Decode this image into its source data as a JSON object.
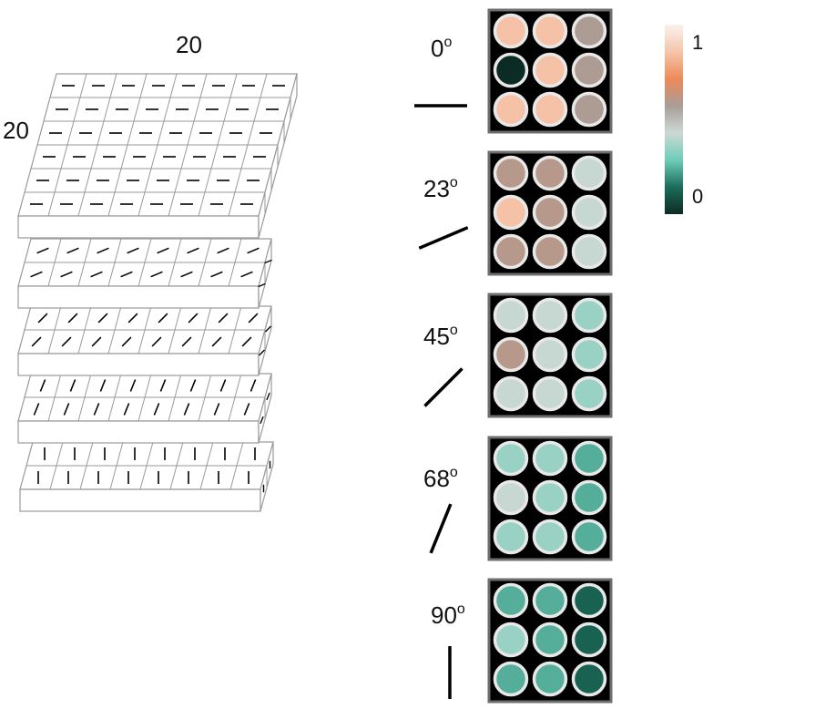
{
  "stack": {
    "width_label": "20",
    "depth_label": "20",
    "layer_angles_deg": [
      0,
      23,
      45,
      68,
      90
    ]
  },
  "panels": [
    {
      "angle_number": "0",
      "degree_mark": "o",
      "orientation_deg": 0,
      "values": [
        [
          0.85,
          0.85,
          0.58
        ],
        [
          0.0,
          0.85,
          0.58
        ],
        [
          0.85,
          0.85,
          0.58
        ]
      ]
    },
    {
      "angle_number": "23",
      "degree_mark": "o",
      "orientation_deg": 23,
      "values": [
        [
          0.6,
          0.6,
          0.42
        ],
        [
          0.85,
          0.6,
          0.42
        ],
        [
          0.6,
          0.6,
          0.42
        ]
      ]
    },
    {
      "angle_number": "45",
      "degree_mark": "o",
      "orientation_deg": 45,
      "values": [
        [
          0.42,
          0.42,
          0.35
        ],
        [
          0.6,
          0.42,
          0.35
        ],
        [
          0.42,
          0.42,
          0.35
        ]
      ]
    },
    {
      "angle_number": "68",
      "degree_mark": "o",
      "orientation_deg": 68,
      "values": [
        [
          0.35,
          0.35,
          0.24
        ],
        [
          0.42,
          0.35,
          0.24
        ],
        [
          0.35,
          0.35,
          0.24
        ]
      ]
    },
    {
      "angle_number": "90",
      "degree_mark": "o",
      "orientation_deg": 90,
      "values": [
        [
          0.24,
          0.24,
          0.12
        ],
        [
          0.35,
          0.24,
          0.12
        ],
        [
          0.24,
          0.24,
          0.12
        ]
      ]
    }
  ],
  "colorbar": {
    "max_label": "1",
    "min_label": "0",
    "stops": [
      "#faf2ee",
      "#f5c5ab",
      "#ee8a58",
      "#a89d98",
      "#cdd8d4",
      "#6ecdb8",
      "#1c6d5a",
      "#0c2b24"
    ]
  },
  "colors": {
    "panel_bg": "#000000",
    "panel_border": "#6e6e6e",
    "dot_ring": "#e8e8e8",
    "cell_border": "#9a9a9a",
    "bar_mark": "#000000"
  }
}
